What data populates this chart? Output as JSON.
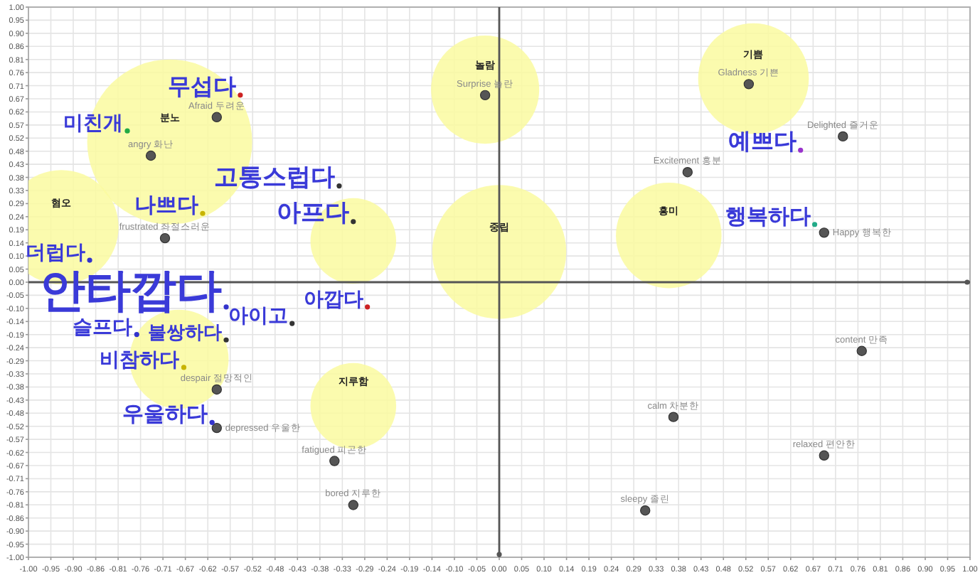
{
  "chart_data": {
    "type": "scatter",
    "marker": "circle",
    "grid": true,
    "xlim": [
      -1,
      1
    ],
    "ylim": [
      -1,
      1
    ],
    "xticks": [
      {
        "value": -1,
        "label": "-1.00"
      },
      {
        "value": -0.9524,
        "label": "-0.95"
      },
      {
        "value": -0.9048,
        "label": "-0.90"
      },
      {
        "value": -0.8571,
        "label": "-0.86"
      },
      {
        "value": -0.8095,
        "label": "-0.81"
      },
      {
        "value": -0.7619,
        "label": "-0.76"
      },
      {
        "value": -0.7143,
        "label": "-0.71"
      },
      {
        "value": -0.6667,
        "label": "-0.67"
      },
      {
        "value": -0.619,
        "label": "-0.62"
      },
      {
        "value": -0.5714,
        "label": "-0.57"
      },
      {
        "value": -0.5238,
        "label": "-0.52"
      },
      {
        "value": -0.4762,
        "label": "-0.48"
      },
      {
        "value": -0.4286,
        "label": "-0.43"
      },
      {
        "value": -0.381,
        "label": "-0.38"
      },
      {
        "value": -0.3333,
        "label": "-0.33"
      },
      {
        "value": -0.2857,
        "label": "-0.29"
      },
      {
        "value": -0.2381,
        "label": "-0.24"
      },
      {
        "value": -0.1905,
        "label": "-0.19"
      },
      {
        "value": -0.1429,
        "label": "-0.14"
      },
      {
        "value": -0.0952,
        "label": "-0.10"
      },
      {
        "value": -0.0476,
        "label": "-0.05"
      },
      {
        "value": 0,
        "label": "0.00"
      },
      {
        "value": 0.0476,
        "label": "0.05"
      },
      {
        "value": 0.0952,
        "label": "0.10"
      },
      {
        "value": 0.1429,
        "label": "0.14"
      },
      {
        "value": 0.1905,
        "label": "0.19"
      },
      {
        "value": 0.2381,
        "label": "0.24"
      },
      {
        "value": 0.2857,
        "label": "0.29"
      },
      {
        "value": 0.3333,
        "label": "0.33"
      },
      {
        "value": 0.381,
        "label": "0.38"
      },
      {
        "value": 0.4286,
        "label": "0.43"
      },
      {
        "value": 0.4762,
        "label": "0.48"
      },
      {
        "value": 0.5238,
        "label": "0.52"
      },
      {
        "value": 0.5714,
        "label": "0.57"
      },
      {
        "value": 0.619,
        "label": "0.62"
      },
      {
        "value": 0.6667,
        "label": "0.67"
      },
      {
        "value": 0.7143,
        "label": "0.71"
      },
      {
        "value": 0.7619,
        "label": "0.76"
      },
      {
        "value": 0.8095,
        "label": "0.81"
      },
      {
        "value": 0.8571,
        "label": "0.86"
      },
      {
        "value": 0.9048,
        "label": "0.90"
      },
      {
        "value": 0.9524,
        "label": "0.95"
      },
      {
        "value": 1,
        "label": "1.00"
      }
    ],
    "yticks": [
      {
        "value": -1,
        "label": "-1.00"
      },
      {
        "value": -0.9524,
        "label": "-0.95"
      },
      {
        "value": -0.9048,
        "label": "-0.90"
      },
      {
        "value": -0.8571,
        "label": "-0.86"
      },
      {
        "value": -0.8095,
        "label": "-0.81"
      },
      {
        "value": -0.7619,
        "label": "-0.76"
      },
      {
        "value": -0.7143,
        "label": "-0.71"
      },
      {
        "value": -0.6667,
        "label": "-0.67"
      },
      {
        "value": -0.619,
        "label": "-0.62"
      },
      {
        "value": -0.5714,
        "label": "-0.57"
      },
      {
        "value": -0.5238,
        "label": "-0.52"
      },
      {
        "value": -0.4762,
        "label": "-0.48"
      },
      {
        "value": -0.4286,
        "label": "-0.43"
      },
      {
        "value": -0.381,
        "label": "-0.38"
      },
      {
        "value": -0.3333,
        "label": "-0.33"
      },
      {
        "value": -0.2857,
        "label": "-0.29"
      },
      {
        "value": -0.2381,
        "label": "-0.24"
      },
      {
        "value": -0.1905,
        "label": "-0.19"
      },
      {
        "value": -0.1429,
        "label": "-0.14"
      },
      {
        "value": -0.0952,
        "label": "-0.10"
      },
      {
        "value": -0.0476,
        "label": "-0.05"
      },
      {
        "value": 0,
        "label": "0.00"
      },
      {
        "value": 0.0476,
        "label": "0.05"
      },
      {
        "value": 0.0952,
        "label": "0.10"
      },
      {
        "value": 0.1429,
        "label": "0.14"
      },
      {
        "value": 0.1905,
        "label": "0.19"
      },
      {
        "value": 0.2381,
        "label": "0.24"
      },
      {
        "value": 0.2857,
        "label": "0.29"
      },
      {
        "value": 0.3333,
        "label": "0.33"
      },
      {
        "value": 0.381,
        "label": "0.38"
      },
      {
        "value": 0.4286,
        "label": "0.43"
      },
      {
        "value": 0.4762,
        "label": "0.48"
      },
      {
        "value": 0.5238,
        "label": "0.52"
      },
      {
        "value": 0.5714,
        "label": "0.57"
      },
      {
        "value": 0.619,
        "label": "0.62"
      },
      {
        "value": 0.6667,
        "label": "0.67"
      },
      {
        "value": 0.7143,
        "label": "0.71"
      },
      {
        "value": 0.7619,
        "label": "0.76"
      },
      {
        "value": 0.8095,
        "label": "0.81"
      },
      {
        "value": 0.8571,
        "label": "0.86"
      },
      {
        "value": 0.9048,
        "label": "0.90"
      },
      {
        "value": 0.9524,
        "label": "0.95"
      },
      {
        "value": 1,
        "label": "1.00"
      }
    ],
    "series": [
      {
        "type": "bubble",
        "color": "#fafaa0",
        "x": [
          -0.03,
          0.54,
          -0.7,
          -0.93,
          0.36,
          0.0,
          -0.31,
          -0.68,
          -0.31
        ],
        "values": [
          0.7,
          0.74,
          0.51,
          0.2,
          0.17,
          0.11,
          0.15,
          -0.28,
          -0.45
        ],
        "sizes": [
          0.43,
          0.45,
          1,
          0.48,
          0.41,
          0.66,
          0.27,
          0.36,
          0.27
        ],
        "value_labels": [
          "놀람",
          "기쁨",
          "분노",
          "혐오",
          "흥미",
          "중립",
          null,
          null,
          "지루함"
        ]
      },
      {
        "color": "#555555",
        "x": [
          -0.03,
          0.53,
          0.73,
          0.4,
          0.69,
          0.77,
          0.37,
          0.69,
          0.31,
          -0.35,
          -0.31,
          -0.6,
          -0.6,
          -0.71,
          -0.74,
          -0.6
        ],
        "values": [
          0.68,
          0.72,
          0.53,
          0.4,
          0.18,
          -0.25,
          -0.49,
          -0.63,
          -0.83,
          -0.65,
          -0.81,
          -0.53,
          -0.39,
          0.16,
          0.46,
          0.6
        ],
        "value_labels": [
          "Surprise 놀란",
          "Gladness 기쁜",
          "Delighted 즐거운",
          "Excitement 흥분",
          "Happy 행복한",
          "content 만족",
          "calm 차분한",
          "relaxed 편안한",
          "sleepy 졸린",
          "fatigued 피곤한",
          "bored 지루한",
          "depressed 우울한",
          "despair 절망적인",
          "frustrated 좌절스러운",
          "angry 화난",
          "Afraid 두려운"
        ]
      },
      {
        "color": "#3a3ad8",
        "colors": [
          "#cc2222",
          "#22aa44",
          "#333333",
          "#333333",
          "#c8b400",
          "#3333cc",
          "#3333cc",
          "#cc2222",
          "#333333",
          "#3333cc",
          "#333333",
          "#c8b400",
          "#3333cc",
          "#9933cc",
          "#22aa88"
        ],
        "x": [
          -0.55,
          -0.79,
          -0.34,
          -0.31,
          -0.63,
          -0.87,
          -0.58,
          -0.28,
          -0.44,
          -0.77,
          -0.58,
          -0.67,
          -0.61,
          0.64,
          0.67
        ],
        "values": [
          0.68,
          0.55,
          0.35,
          0.22,
          0.25,
          0.08,
          -0.09,
          -0.09,
          -0.15,
          -0.19,
          -0.21,
          -0.31,
          -0.51,
          0.48,
          0.21
        ],
        "value_labels": [
          "무섭다",
          "미친개",
          "고통스럽다",
          "아프다",
          "나쁘다",
          "더럽다",
          "안타깝다",
          "아깝다",
          "아이고",
          "슬프다",
          "불쌍하다",
          "비참하다",
          "우울하다",
          "예쁘다",
          "행복하다"
        ]
      }
    ]
  }
}
